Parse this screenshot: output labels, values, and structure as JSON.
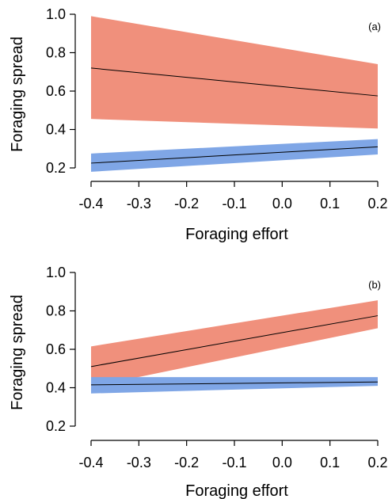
{
  "chart_data": [
    {
      "type": "line",
      "panel_label": "(a)",
      "xlabel": "Foraging effort",
      "ylabel": "Foraging spread",
      "xlim": [
        -0.4,
        0.2
      ],
      "ylim": [
        0.2,
        1.0
      ],
      "x_ticks": [
        "-0.4",
        "-0.3",
        "-0.2",
        "-0.1",
        "0.0",
        "0.1",
        "0.2"
      ],
      "y_ticks": [
        "0.2",
        "0.4",
        "0.6",
        "0.8",
        "1.0"
      ],
      "series": [
        {
          "color": "#F0907C",
          "x": [
            -0.4,
            0.2
          ],
          "y": [
            0.72,
            0.575
          ],
          "lower": [
            0.455,
            0.405
          ],
          "upper": [
            0.99,
            0.74
          ]
        },
        {
          "color": "#7FA6E6",
          "x": [
            -0.4,
            0.2
          ],
          "y": [
            0.225,
            0.31
          ],
          "lower": [
            0.18,
            0.27
          ],
          "upper": [
            0.275,
            0.35
          ]
        }
      ]
    },
    {
      "type": "line",
      "panel_label": "(b)",
      "xlabel": "Foraging effort",
      "ylabel": "Foraging spread",
      "xlim": [
        -0.4,
        0.2
      ],
      "ylim": [
        0.2,
        1.0
      ],
      "x_ticks": [
        "-0.4",
        "-0.3",
        "-0.2",
        "-0.1",
        "0.0",
        "0.1",
        "0.2"
      ],
      "y_ticks": [
        "0.2",
        "0.4",
        "0.6",
        "0.8",
        "1.0"
      ],
      "series": [
        {
          "color": "#F0907C",
          "x": [
            -0.4,
            0.2
          ],
          "y": [
            0.51,
            0.775
          ],
          "lower": [
            0.405,
            0.71
          ],
          "upper": [
            0.615,
            0.855
          ]
        },
        {
          "color": "#7FA6E6",
          "x": [
            -0.4,
            0.2
          ],
          "y": [
            0.415,
            0.43
          ],
          "lower": [
            0.37,
            0.41
          ],
          "upper": [
            0.455,
            0.455
          ]
        }
      ]
    }
  ]
}
